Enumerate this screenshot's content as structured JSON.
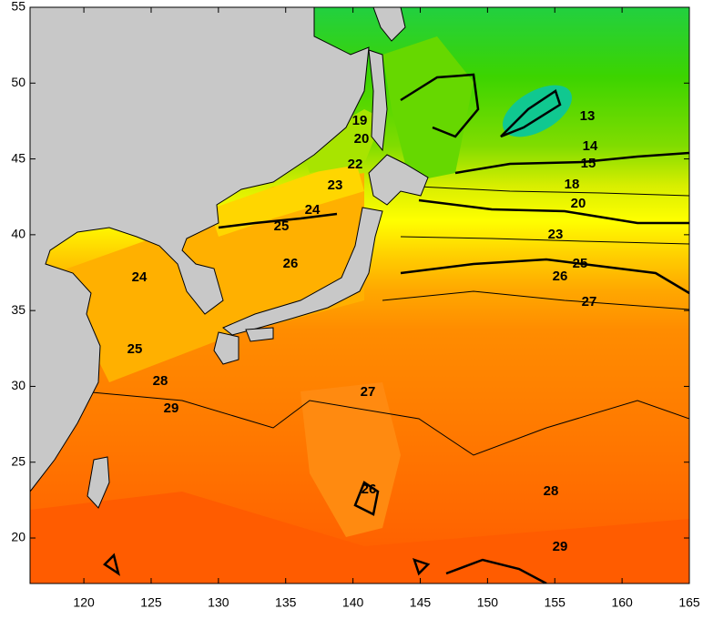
{
  "map": {
    "xlim": [
      116,
      165
    ],
    "ylim": [
      17,
      55
    ],
    "xticks": [
      120,
      125,
      130,
      135,
      140,
      145,
      150,
      155,
      160,
      165
    ],
    "yticks": [
      20,
      25,
      30,
      35,
      40,
      45,
      50,
      55
    ],
    "contour_labels": [
      13,
      14,
      15,
      18,
      20,
      23,
      25,
      26,
      27,
      19,
      20,
      22,
      23,
      24,
      25,
      26,
      24,
      25,
      28,
      29,
      27,
      26,
      28,
      29
    ]
  }
}
